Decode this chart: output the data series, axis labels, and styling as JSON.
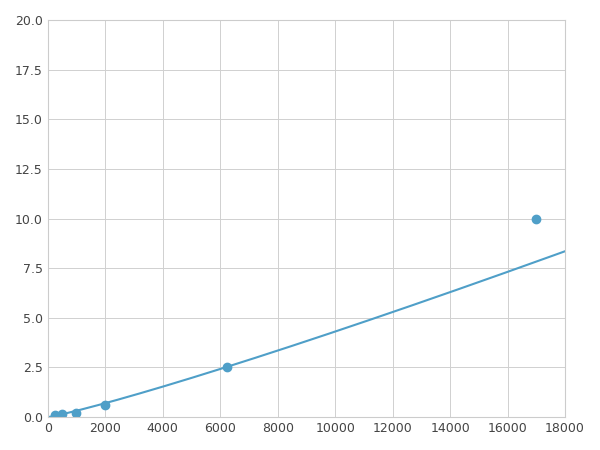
{
  "x": [
    0,
    250,
    500,
    1000,
    2000,
    6250,
    17000
  ],
  "y": [
    0.0,
    0.1,
    0.15,
    0.2,
    0.6,
    2.5,
    10.0
  ],
  "line_color": "#4f9fc8",
  "marker_x": [
    250,
    500,
    1000,
    2000,
    6250,
    17000
  ],
  "marker_y": [
    0.1,
    0.15,
    0.2,
    0.6,
    2.5,
    10.0
  ],
  "marker_color": "#4f9fc8",
  "marker_size": 6,
  "xlim": [
    0,
    18000
  ],
  "ylim": [
    0,
    20
  ],
  "xticks": [
    0,
    2000,
    4000,
    6000,
    8000,
    10000,
    12000,
    14000,
    16000,
    18000
  ],
  "yticks": [
    0.0,
    2.5,
    5.0,
    7.5,
    10.0,
    12.5,
    15.0,
    17.5,
    20.0
  ],
  "grid": true,
  "background_color": "#ffffff",
  "figsize": [
    6.0,
    4.5
  ],
  "dpi": 100
}
